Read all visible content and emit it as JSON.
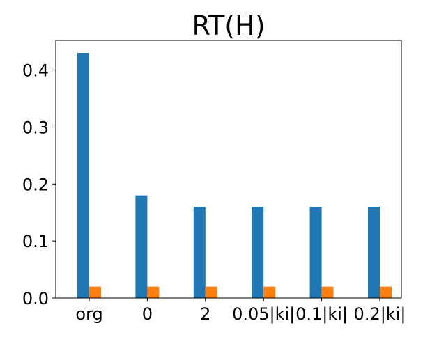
{
  "chart_data": {
    "type": "bar",
    "title": "RT(H)",
    "xlabel": "",
    "ylabel": "",
    "categories": [
      "org",
      "0",
      "2",
      "0.05|ki|",
      "0.1|ki|",
      "0.2|ki|"
    ],
    "series": [
      {
        "values": [
          0.43,
          0.18,
          0.16,
          0.16,
          0.16,
          0.16
        ],
        "color": "#1f77b4"
      },
      {
        "values": [
          0.02,
          0.02,
          0.02,
          0.02,
          0.02,
          0.02
        ],
        "color": "#ff7f0e"
      }
    ],
    "ylim": [
      0,
      0.452
    ],
    "yticks": [
      0.0,
      0.1,
      0.2,
      0.3,
      0.4
    ],
    "ytick_labels": [
      "0.0",
      "0.1",
      "0.2",
      "0.3",
      "0.4"
    ],
    "grid": false,
    "legend": "none"
  }
}
